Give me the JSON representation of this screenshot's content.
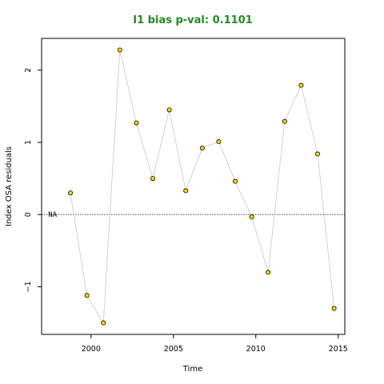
{
  "chart_data": {
    "type": "line",
    "title": "I1 bias p-val: 0.1101",
    "xlabel": "Time",
    "ylabel": "Index OSA residuals",
    "xlim": [
      1997.0,
      2015.4
    ],
    "ylim": [
      -1.66,
      2.44
    ],
    "x_ticks": [
      2000,
      2005,
      2010,
      2015
    ],
    "y_ticks": [
      -1,
      0,
      1,
      2
    ],
    "reference_line": {
      "y": 0,
      "style": "dotted"
    },
    "annotations": [
      {
        "text": "NA",
        "x": 1997.4,
        "y": 0
      }
    ],
    "line_color": "#cccccc",
    "point_fill": "#FFD700",
    "point_stroke": "#000000",
    "title_color": "#228B22",
    "series": [
      {
        "x": [
          1998.75,
          1999.75,
          2000.75,
          2001.75,
          2002.75,
          2003.75,
          2004.75,
          2005.75,
          2006.75,
          2007.75,
          2008.75,
          2009.75,
          2010.75,
          2011.75,
          2012.75,
          2013.75,
          2014.75
        ],
        "values": [
          0.3,
          -1.12,
          -1.5,
          2.28,
          1.27,
          0.5,
          1.45,
          0.33,
          0.92,
          1.01,
          0.46,
          -0.03,
          -0.8,
          1.29,
          1.79,
          0.84,
          -1.3
        ]
      }
    ]
  }
}
